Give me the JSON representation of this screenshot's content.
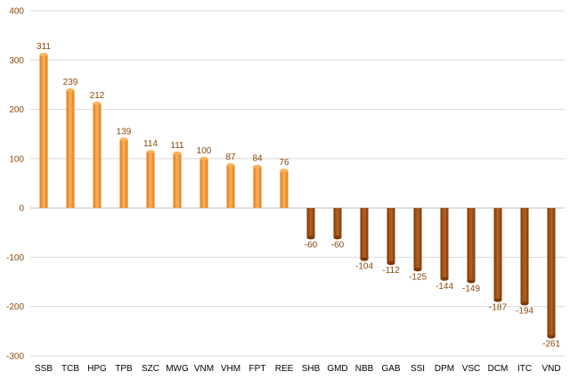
{
  "chart_data": {
    "type": "bar",
    "title": "",
    "xlabel": "",
    "ylabel": "",
    "ylim": [
      -300,
      400
    ],
    "yticks": [
      -300,
      -200,
      -100,
      0,
      100,
      200,
      300,
      400
    ],
    "grid": true,
    "legend": "none",
    "categories": [
      "SSB",
      "TCB",
      "HPG",
      "TPB",
      "SZC",
      "MWG",
      "VNM",
      "VHM",
      "FPT",
      "REE",
      "SHB",
      "GMD",
      "NBB",
      "GAB",
      "SSI",
      "DPM",
      "VSC",
      "DCM",
      "ITC",
      "VND"
    ],
    "values": [
      311,
      239,
      212,
      139,
      114,
      111,
      100,
      87,
      84,
      76,
      -60,
      -60,
      -104,
      -112,
      -125,
      -144,
      -149,
      -187,
      -194,
      -261
    ],
    "colors": {
      "positive_light": "#f9b25a",
      "positive_dark": "#e07a17",
      "negative_light": "#b8621e",
      "negative_dark": "#7a3a0a",
      "label": "#8a4a0a"
    }
  }
}
